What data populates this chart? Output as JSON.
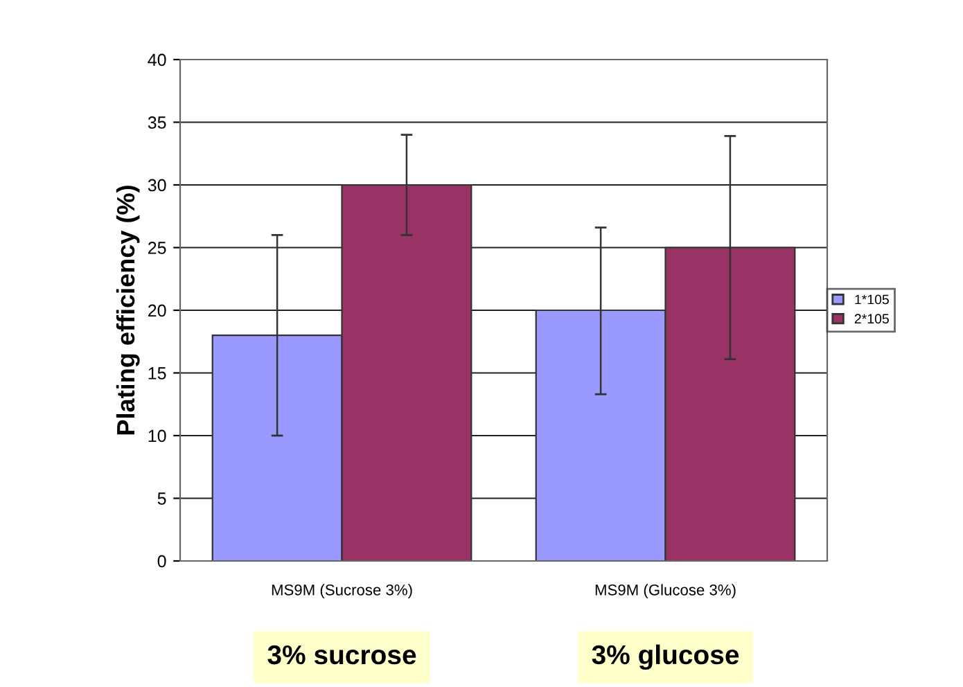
{
  "chart_data": {
    "type": "bar",
    "ylabel": "Plating efficiency (%)",
    "categories": [
      "MS9M (Sucrose 3%)",
      "MS9M (Glucose 3%)"
    ],
    "series": [
      {
        "name": "1*105",
        "color": "#9999ff",
        "values": [
          18,
          20
        ],
        "errors": [
          [
            10,
            26
          ],
          [
            13.3,
            26.6
          ]
        ]
      },
      {
        "name": "2*105",
        "color": "#993366",
        "values": [
          30,
          25
        ],
        "errors": [
          [
            26,
            34
          ],
          [
            16.1,
            33.9
          ]
        ]
      }
    ],
    "ylim": [
      0,
      40
    ],
    "yticks": [
      0,
      5,
      10,
      15,
      20,
      25,
      30,
      35,
      40
    ],
    "grid": "y",
    "legend": "right",
    "annotations": [
      "3% sucrose",
      "3% glucose"
    ]
  }
}
